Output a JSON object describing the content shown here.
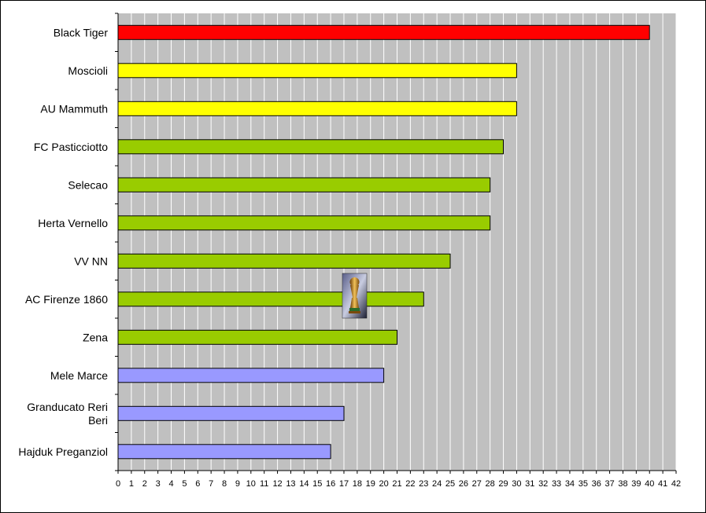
{
  "chart_data": {
    "type": "bar",
    "orientation": "horizontal",
    "categories": [
      "Black Tiger",
      "Moscioli",
      "AU Mammuth",
      "FC Pasticciotto",
      "Selecao",
      "Herta Vernello",
      "VV NN",
      "AC Firenze 1860",
      "Zena",
      "Mele Marce",
      "Granducato Reri Beri",
      "Hajduk Preganziol"
    ],
    "values": [
      40,
      30,
      30,
      29,
      28,
      28,
      25,
      23,
      21,
      20,
      17,
      16
    ],
    "bar_colors": [
      "#ff0000",
      "#ffff00",
      "#ffff00",
      "#99cc00",
      "#99cc00",
      "#99cc00",
      "#99cc00",
      "#99cc00",
      "#99cc00",
      "#9999ff",
      "#9999ff",
      "#9999ff"
    ],
    "xlim": [
      0,
      42
    ],
    "x_ticks": [
      "0",
      "1",
      "2",
      "3",
      "4",
      "5",
      "6",
      "7",
      "8",
      "9",
      "10",
      "11",
      "12",
      "13",
      "14",
      "15",
      "16",
      "17",
      "18",
      "19",
      "20",
      "21",
      "22",
      "23",
      "24",
      "25",
      "26",
      "27",
      "28",
      "29",
      "30",
      "31",
      "32",
      "33",
      "34",
      "35",
      "36",
      "37",
      "38",
      "39",
      "40",
      "41",
      "42"
    ],
    "grid": "vertical",
    "plot_background": "#c0c0c0",
    "gridline_color": "#ffffff",
    "title": "",
    "xlabel": "",
    "ylabel": "",
    "decoration": "trophy-icon"
  }
}
